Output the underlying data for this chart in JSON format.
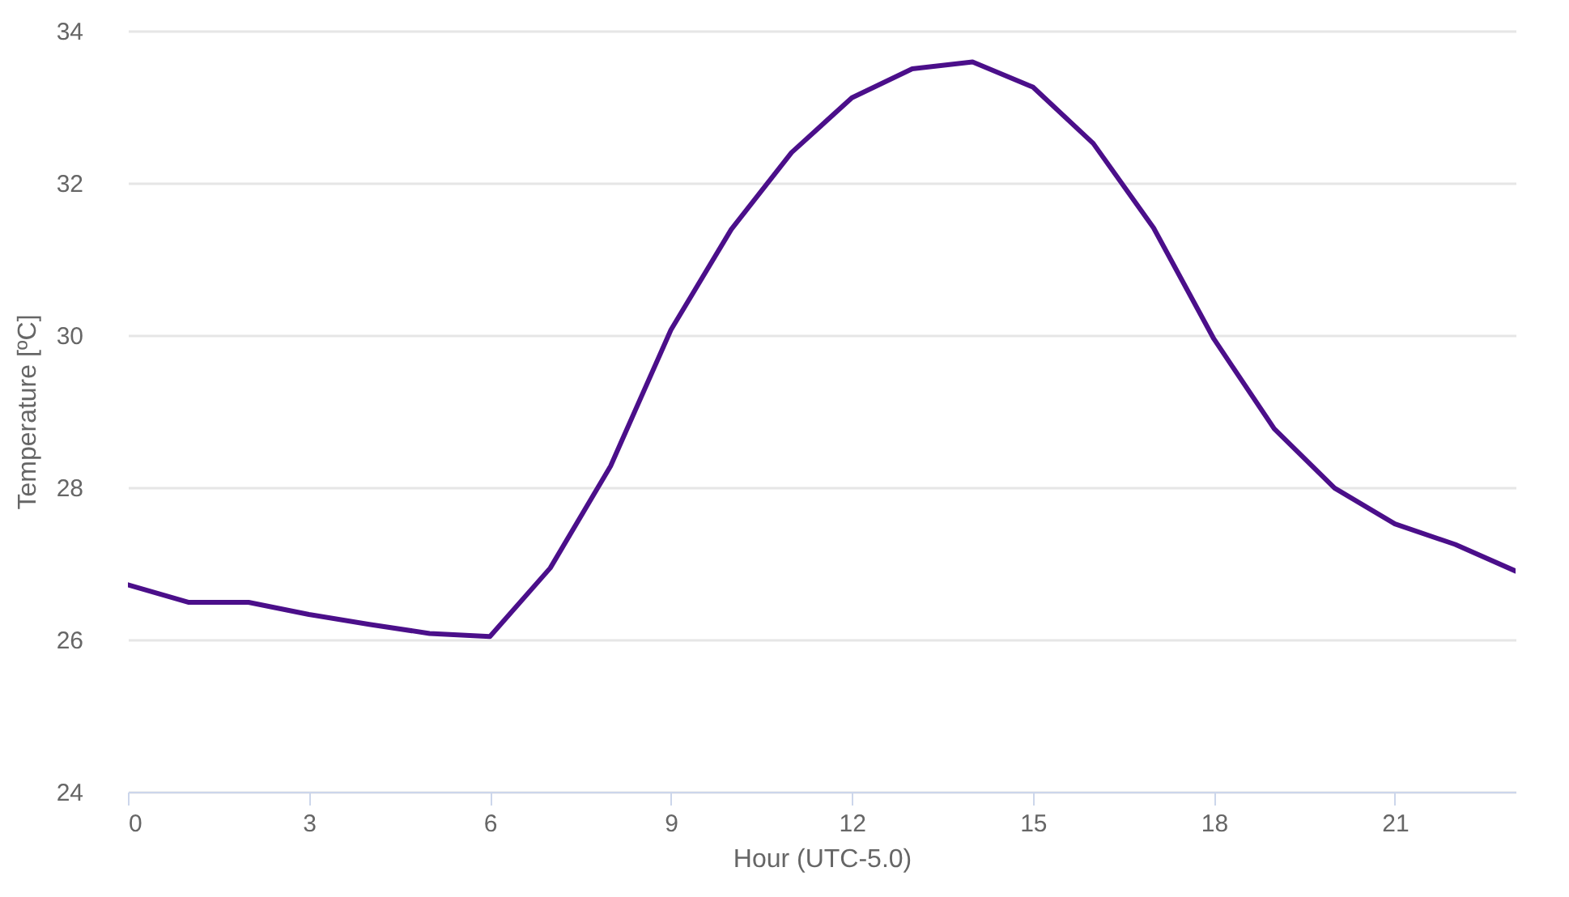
{
  "chart_data": {
    "type": "line",
    "xlabel": "Hour (UTC-5.0)",
    "ylabel": "Temperature [ºC]",
    "x": [
      0,
      1,
      2,
      3,
      4,
      5,
      6,
      7,
      8,
      9,
      10,
      11,
      12,
      13,
      14,
      15,
      16,
      17,
      18,
      19,
      20,
      21,
      22,
      23
    ],
    "series": [
      {
        "color": "#4b0f8a",
        "values": [
          26.72,
          26.49,
          26.49,
          26.33,
          26.2,
          26.08,
          26.04,
          26.94,
          28.28,
          30.07,
          31.39,
          32.4,
          33.12,
          33.5,
          33.59,
          33.26,
          32.52,
          31.41,
          29.95,
          28.77,
          27.99,
          27.52,
          27.25,
          26.9
        ]
      }
    ],
    "xlim": [
      0,
      23
    ],
    "xticks": [
      0,
      3,
      6,
      9,
      12,
      15,
      18,
      21
    ],
    "ylim": [
      24,
      34
    ],
    "yticks": [
      24,
      26,
      28,
      30,
      32,
      34
    ],
    "grid": "y",
    "marker": "none",
    "line_style": "solid"
  }
}
